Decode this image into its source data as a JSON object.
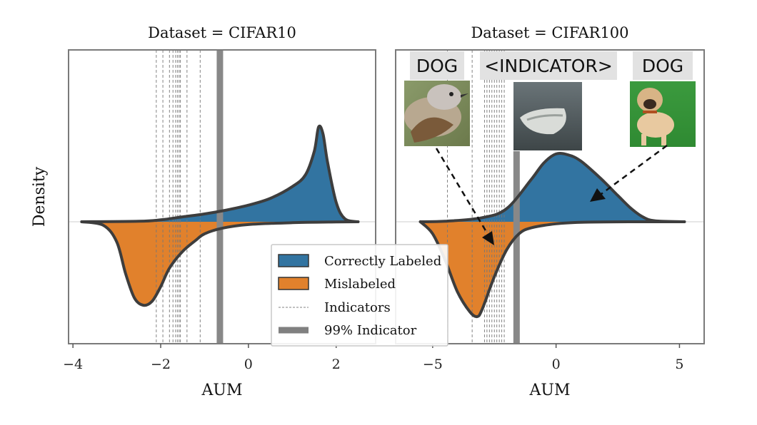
{
  "chart_data": [
    {
      "type": "area",
      "title": "Dataset = CIFAR10",
      "xlabel": "AUM",
      "ylabel": "Density",
      "xlim": [
        -4.1,
        2.9
      ],
      "ylim": [
        -1.0,
        1.0
      ],
      "xticks": [
        {
          "value": -4,
          "label": "−4"
        },
        {
          "value": -2,
          "label": "−2"
        },
        {
          "value": 0,
          "label": "0"
        },
        {
          "value": 2,
          "label": "2"
        }
      ],
      "series": [
        {
          "name": "Correctly Labeled",
          "color": "#3274a1",
          "x": [
            -3.8,
            -2.5,
            -2.0,
            -1.5,
            -1.0,
            -0.5,
            0.0,
            0.5,
            1.0,
            1.3,
            1.5,
            1.6,
            1.7,
            1.8,
            2.0,
            2.2,
            2.5
          ],
          "density": [
            0.0,
            0.005,
            0.02,
            0.05,
            0.08,
            0.12,
            0.17,
            0.24,
            0.36,
            0.48,
            0.72,
            0.97,
            0.9,
            0.62,
            0.2,
            0.03,
            0.0
          ]
        },
        {
          "name": "Mislabeled",
          "color": "#e1812c",
          "x": [
            -3.8,
            -3.3,
            -3.0,
            -2.8,
            -2.6,
            -2.4,
            -2.2,
            -2.0,
            -1.8,
            -1.5,
            -1.2,
            -1.0,
            -0.6,
            0.0,
            1.0,
            2.0,
            2.5
          ],
          "density": [
            0.0,
            -0.04,
            -0.22,
            -0.56,
            -0.82,
            -0.9,
            -0.86,
            -0.7,
            -0.5,
            -0.32,
            -0.2,
            -0.13,
            -0.07,
            -0.03,
            -0.01,
            -0.002,
            0.0
          ]
        }
      ],
      "indicators": [
        -2.1,
        -1.95,
        -1.8,
        -1.72,
        -1.66,
        -1.62,
        -1.58,
        -1.55,
        -1.4,
        -1.1
      ],
      "indicator_99": -0.65
    },
    {
      "type": "area",
      "title": "Dataset = CIFAR100",
      "xlabel": "AUM",
      "ylabel": "",
      "xlim": [
        -6.5,
        6.0
      ],
      "ylim": [
        -1.0,
        1.0
      ],
      "xticks": [
        {
          "value": -5,
          "label": "−5"
        },
        {
          "value": 0,
          "label": "0"
        },
        {
          "value": 5,
          "label": "5"
        }
      ],
      "series": [
        {
          "name": "Correctly Labeled",
          "color": "#3274a1",
          "x": [
            -5.5,
            -4.5,
            -3.0,
            -2.0,
            -1.0,
            -0.5,
            0.0,
            0.5,
            1.0,
            1.8,
            2.5,
            3.0,
            3.5,
            4.0,
            5.2
          ],
          "density": [
            0.0,
            0.005,
            0.04,
            0.13,
            0.42,
            0.58,
            0.67,
            0.66,
            0.6,
            0.43,
            0.26,
            0.14,
            0.05,
            0.01,
            0.0
          ]
        },
        {
          "name": "Mislabeled",
          "color": "#e1812c",
          "x": [
            -5.5,
            -5.0,
            -4.5,
            -4.0,
            -3.5,
            -3.2,
            -3.0,
            -2.5,
            -2.0,
            -1.5,
            -1.0,
            0.0,
            1.0,
            3.0,
            5.2
          ],
          "density": [
            0.0,
            -0.12,
            -0.38,
            -0.7,
            -0.9,
            -0.95,
            -0.88,
            -0.55,
            -0.28,
            -0.12,
            -0.06,
            -0.02,
            -0.005,
            0.0,
            0.0
          ]
        }
      ],
      "indicators": [
        -4.4,
        -3.4,
        -2.9,
        -2.8,
        -2.7,
        -2.6,
        -2.5,
        -2.4,
        -2.3,
        -2.2,
        -2.1
      ],
      "indicator_99": -1.6
    }
  ],
  "legend": {
    "placement": "lower-center",
    "entries": [
      {
        "label": "Correctly Labeled",
        "color": "#3274a1",
        "kind": "patch"
      },
      {
        "label": "Mislabeled",
        "color": "#e1812c",
        "kind": "patch"
      },
      {
        "label": "Indicators",
        "color": "#808080",
        "kind": "dashed-line"
      },
      {
        "label": "99% Indicator",
        "color": "#808080",
        "kind": "thick-line"
      }
    ]
  },
  "example_images": [
    {
      "caption": "DOG",
      "icon": "bird-thumbnail"
    },
    {
      "caption": "<INDICATOR>",
      "icon": "boat-thumbnail"
    },
    {
      "caption": "DOG",
      "icon": "dog-thumbnail"
    }
  ]
}
